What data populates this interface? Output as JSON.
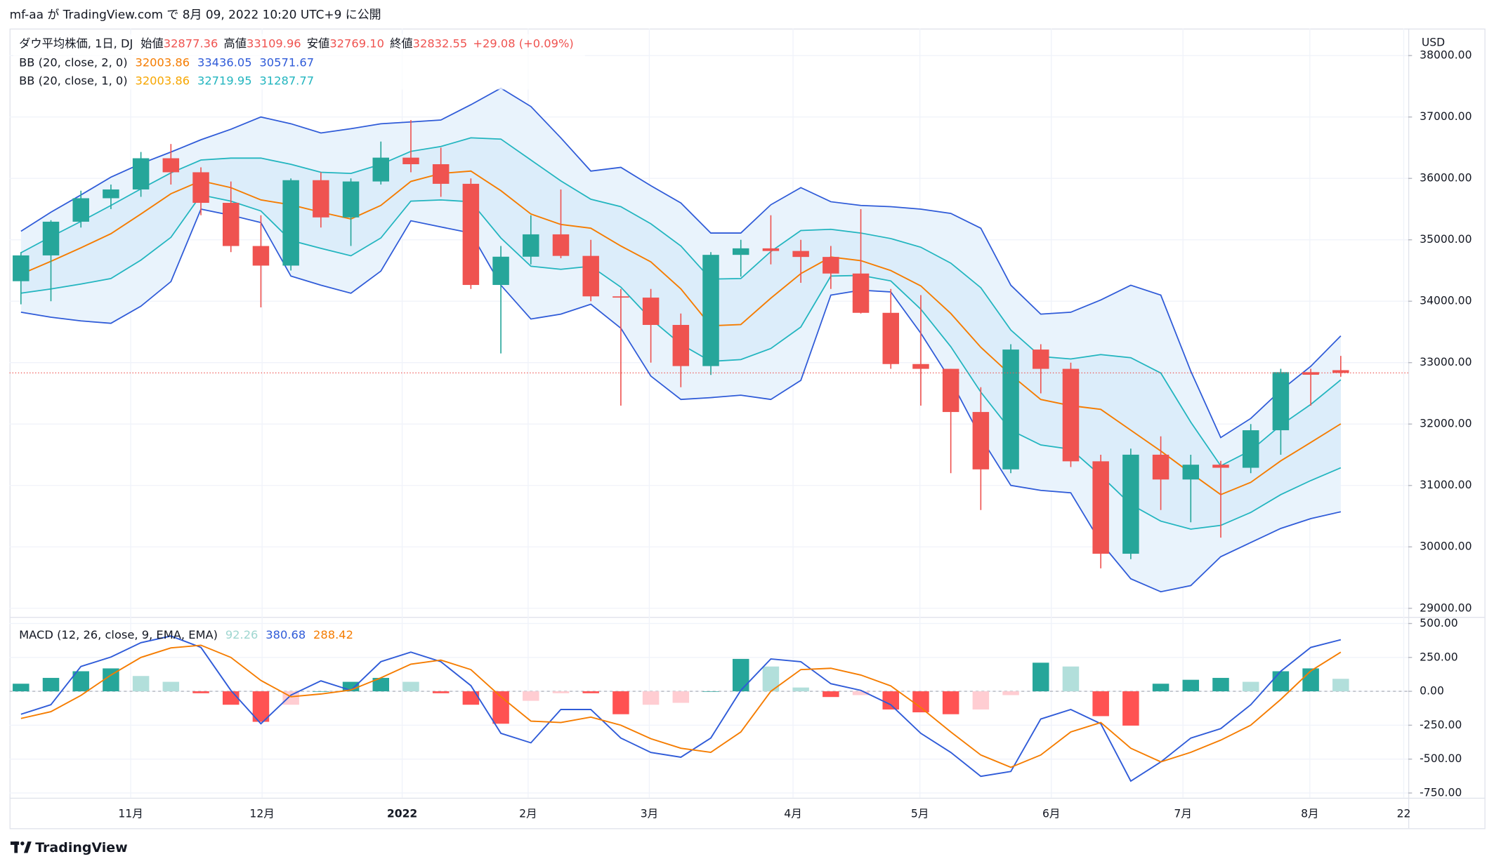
{
  "header": {
    "publish": "mf-aa が TradingView.com で 8月 09, 2022 10:20 UTC+9 に公開"
  },
  "chart_data": [
    {
      "type": "candlestick",
      "title": "ダウ平均株価, 1日, DJ",
      "ohlc_legend": [
        {
          "label": "始値",
          "value": "32877.36"
        },
        {
          "label": "高値",
          "value": "33109.96"
        },
        {
          "label": "安値",
          "value": "32769.10"
        },
        {
          "label": "終値",
          "value": "32832.55"
        }
      ],
      "change": "+29.08 (+0.09%)",
      "currency": "USD",
      "categories": [
        null,
        null,
        null,
        null,
        null,
        null,
        null,
        null,
        null,
        null,
        null,
        null,
        null,
        null,
        null,
        null,
        null,
        null,
        null,
        null,
        null,
        null,
        null,
        null,
        null,
        null,
        null,
        null,
        null,
        null,
        null,
        null,
        null,
        null,
        null,
        null,
        null,
        null,
        null,
        null,
        null,
        null,
        null,
        null,
        null
      ],
      "open": [
        34326,
        34746,
        35295,
        35677,
        35820,
        36328,
        36100,
        35602,
        34899,
        34580,
        35971,
        35365,
        35950,
        36338,
        36231,
        35912,
        34265,
        34725,
        35089,
        34738,
        34079,
        34059,
        33614,
        32944,
        34755,
        34861,
        34818,
        34721,
        34451,
        33811,
        32977,
        32899,
        32196,
        31262,
        33213,
        32899,
        31393,
        29888,
        31501,
        31097,
        31338,
        31288,
        31899,
        32845,
        32877.36
      ],
      "high": [
        34800,
        35320,
        35800,
        35900,
        36430,
        36560,
        36180,
        35950,
        35400,
        36000,
        36100,
        36000,
        36600,
        36950,
        36500,
        36000,
        34900,
        35400,
        35820,
        35000,
        34200,
        34200,
        33800,
        34800,
        35000,
        35400,
        35000,
        34900,
        35500,
        34200,
        34100,
        32900,
        32600,
        33300,
        33300,
        33000,
        31500,
        31600,
        31800,
        31500,
        31400,
        32000,
        32900,
        32900,
        33109.96
      ],
      "low": [
        33950,
        34000,
        35200,
        35500,
        35700,
        35900,
        35400,
        34800,
        33900,
        34500,
        35200,
        34900,
        35900,
        36100,
        35700,
        34200,
        33150,
        34600,
        34700,
        34000,
        32300,
        33000,
        32600,
        32800,
        34400,
        34600,
        34300,
        34200,
        33800,
        32900,
        32300,
        31200,
        30600,
        31200,
        32500,
        31300,
        29650,
        29800,
        30600,
        30400,
        30150,
        31200,
        31500,
        32300,
        32769.1
      ],
      "close": [
        34746,
        35295,
        35677,
        35820,
        36328,
        36100,
        35602,
        34899,
        34580,
        35971,
        35365,
        35950,
        36338,
        36231,
        35912,
        34265,
        34725,
        35089,
        34738,
        34079,
        34059,
        33614,
        32944,
        34755,
        34861,
        34818,
        34721,
        34451,
        33811,
        32977,
        32899,
        32196,
        31262,
        33213,
        32899,
        31393,
        29888,
        31501,
        31097,
        31338,
        31288,
        31899,
        32845,
        32803,
        32832.55
      ],
      "up_color": "#26a69a",
      "down_color": "#ef5350",
      "bands": [
        {
          "name": "BB (20, close, 2, 0)",
          "legend_values": [
            "32003.86",
            "33436.05",
            "30571.67"
          ],
          "colors": [
            "#f57c00",
            "#2f5bd8",
            "#2f5bd8"
          ],
          "fill": "#e9f3fc",
          "basis": [
            34440,
            34650,
            34870,
            35100,
            35420,
            35750,
            35960,
            35850,
            35650,
            35570,
            35450,
            35340,
            35560,
            35950,
            36080,
            36120,
            35800,
            35420,
            35250,
            35190,
            34900,
            34640,
            34200,
            33600,
            33620,
            34050,
            34450,
            34720,
            34660,
            34500,
            34250,
            33800,
            33250,
            32800,
            32400,
            32300,
            32240,
            31900,
            31560,
            31200,
            30850,
            31050,
            31400,
            31700,
            32003.86
          ],
          "upper": [
            35140,
            35450,
            35730,
            36020,
            36240,
            36430,
            36630,
            36800,
            37000,
            36890,
            36740,
            36810,
            36890,
            36920,
            36950,
            37200,
            37470,
            37170,
            36660,
            36120,
            36180,
            35880,
            35600,
            35110,
            35110,
            35570,
            35850,
            35620,
            35560,
            35540,
            35500,
            35430,
            35190,
            34260,
            33790,
            33820,
            34020,
            34260,
            34100,
            32860,
            31780,
            32090,
            32550,
            32940,
            33436.05
          ],
          "lower": [
            33820,
            33740,
            33680,
            33640,
            33920,
            34320,
            35500,
            35400,
            35280,
            34410,
            34260,
            34130,
            34490,
            35310,
            35210,
            35110,
            34260,
            33710,
            33790,
            33950,
            33560,
            32780,
            32400,
            32430,
            32470,
            32400,
            32710,
            34100,
            34180,
            34150,
            33480,
            32710,
            31780,
            31000,
            30920,
            30880,
            30070,
            29480,
            29270,
            29370,
            29840,
            30070,
            30300,
            30460,
            30571.67
          ]
        },
        {
          "name": "BB (20, close, 1, 0)",
          "legend_values": [
            "32003.86",
            "32719.95",
            "31287.77"
          ],
          "colors": [
            "#f7a600",
            "#22b5bf",
            "#22b5bf"
          ],
          "fill": "#dcedfa",
          "upper": [
            34790,
            35050,
            35300,
            35560,
            35830,
            36090,
            36300,
            36330,
            36330,
            36230,
            36100,
            36080,
            36230,
            36440,
            36520,
            36660,
            36640,
            36300,
            35960,
            35660,
            35540,
            35260,
            34900,
            34360,
            34370,
            34810,
            35150,
            35170,
            35110,
            35020,
            34880,
            34620,
            34220,
            33530,
            33100,
            33060,
            33130,
            33080,
            32830,
            32030,
            31320,
            31570,
            31980,
            32320,
            32719.95
          ],
          "lower": [
            34130,
            34200,
            34280,
            34370,
            34670,
            35040,
            35730,
            35630,
            35470,
            34990,
            34860,
            34740,
            35030,
            35630,
            35650,
            35620,
            35030,
            34570,
            34520,
            34570,
            34230,
            33710,
            33300,
            33020,
            33050,
            33230,
            33580,
            34410,
            34420,
            34330,
            33870,
            33260,
            32520,
            31900,
            31660,
            31590,
            31160,
            30690,
            30420,
            30290,
            30350,
            30560,
            30850,
            31080,
            31287.77
          ]
        }
      ],
      "xlim": [
        -0.38,
        46.25
      ],
      "xticks": [
        {
          "value": 3.66,
          "label": "11月"
        },
        {
          "value": 8.04,
          "label": "12月"
        },
        {
          "value": 12.71,
          "label": "2022"
        },
        {
          "value": 16.91,
          "label": "2月"
        },
        {
          "value": 20.95,
          "label": "3月"
        },
        {
          "value": 25.74,
          "label": "4月"
        },
        {
          "value": 29.97,
          "label": "5月"
        },
        {
          "value": 34.35,
          "label": "6月"
        },
        {
          "value": 38.74,
          "label": "7月"
        },
        {
          "value": 42.97,
          "label": "8月"
        },
        {
          "value": 46.1,
          "label": "22"
        }
      ],
      "ylim": [
        28860,
        38440
      ],
      "yticks": [
        {
          "value": 29000,
          "label": "29000.00"
        },
        {
          "value": 30000,
          "label": "30000.00"
        },
        {
          "value": 31000,
          "label": "31000.00"
        },
        {
          "value": 32000,
          "label": "32000.00"
        },
        {
          "value": 33000,
          "label": "33000.00"
        },
        {
          "value": 34000,
          "label": "34000.00"
        },
        {
          "value": 35000,
          "label": "35000.00"
        },
        {
          "value": 36000,
          "label": "36000.00"
        },
        {
          "value": 37000,
          "label": "37000.00"
        },
        {
          "value": 38000,
          "label": "38000.00"
        }
      ],
      "grid": true
    },
    {
      "type": "macd",
      "title": "MACD (12, 26, close, 9, EMA, EMA)",
      "legend_values": [
        "92.26",
        "380.68",
        "288.42"
      ],
      "histogram": [
        56,
        99,
        148,
        169,
        113,
        70,
        -14,
        -99,
        -225,
        -99,
        0,
        70,
        99,
        70,
        -14,
        -99,
        -239,
        -70,
        -14,
        -14,
        -169,
        -99,
        -85,
        0,
        239,
        183,
        28,
        -42,
        -28,
        -134,
        -155,
        -169,
        -134,
        -28,
        211,
        183,
        -183,
        -253,
        56,
        85,
        99,
        70,
        148,
        169,
        92.26
      ],
      "histogram_colors": [
        "#26a69a",
        "#b2dfdb",
        "#ff5252",
        "#ffcdd2"
      ],
      "series": [
        {
          "name": "MACD",
          "color": "#2f5bd8",
          "values": [
            -169,
            -99,
            183,
            253,
            359,
            408,
            324,
            7,
            -239,
            -28,
            77,
            7,
            218,
            289,
            218,
            42,
            -310,
            -380,
            -134,
            -134,
            -345,
            -451,
            -486,
            -345,
            7,
            239,
            218,
            56,
            7,
            -99,
            -310,
            -451,
            -627,
            -591,
            -204,
            -134,
            -239,
            -662,
            -521,
            -345,
            -275,
            -99,
            148,
            324,
            380.68
          ]
        },
        {
          "name": "Signal",
          "color": "#f57c00",
          "values": [
            -200,
            -150,
            -30,
            120,
            250,
            320,
            340,
            250,
            80,
            -40,
            -20,
            10,
            100,
            200,
            230,
            160,
            -40,
            -220,
            -230,
            -190,
            -250,
            -350,
            -420,
            -450,
            -300,
            0,
            160,
            170,
            120,
            40,
            -120,
            -300,
            -470,
            -560,
            -470,
            -300,
            -230,
            -420,
            -520,
            -450,
            -360,
            -250,
            -60,
            150,
            288.42
          ]
        }
      ],
      "ylim": [
        -785,
        535
      ],
      "yticks": [
        {
          "value": 500,
          "label": "500.00"
        },
        {
          "value": 250,
          "label": "250.00"
        },
        {
          "value": 0,
          "label": "0.00"
        },
        {
          "value": -250,
          "label": "-250.00"
        },
        {
          "value": -500,
          "label": "-500.00"
        },
        {
          "value": -750,
          "label": "-750.00"
        }
      ],
      "grid": true
    }
  ],
  "footer": {
    "brand": "TradingView"
  }
}
